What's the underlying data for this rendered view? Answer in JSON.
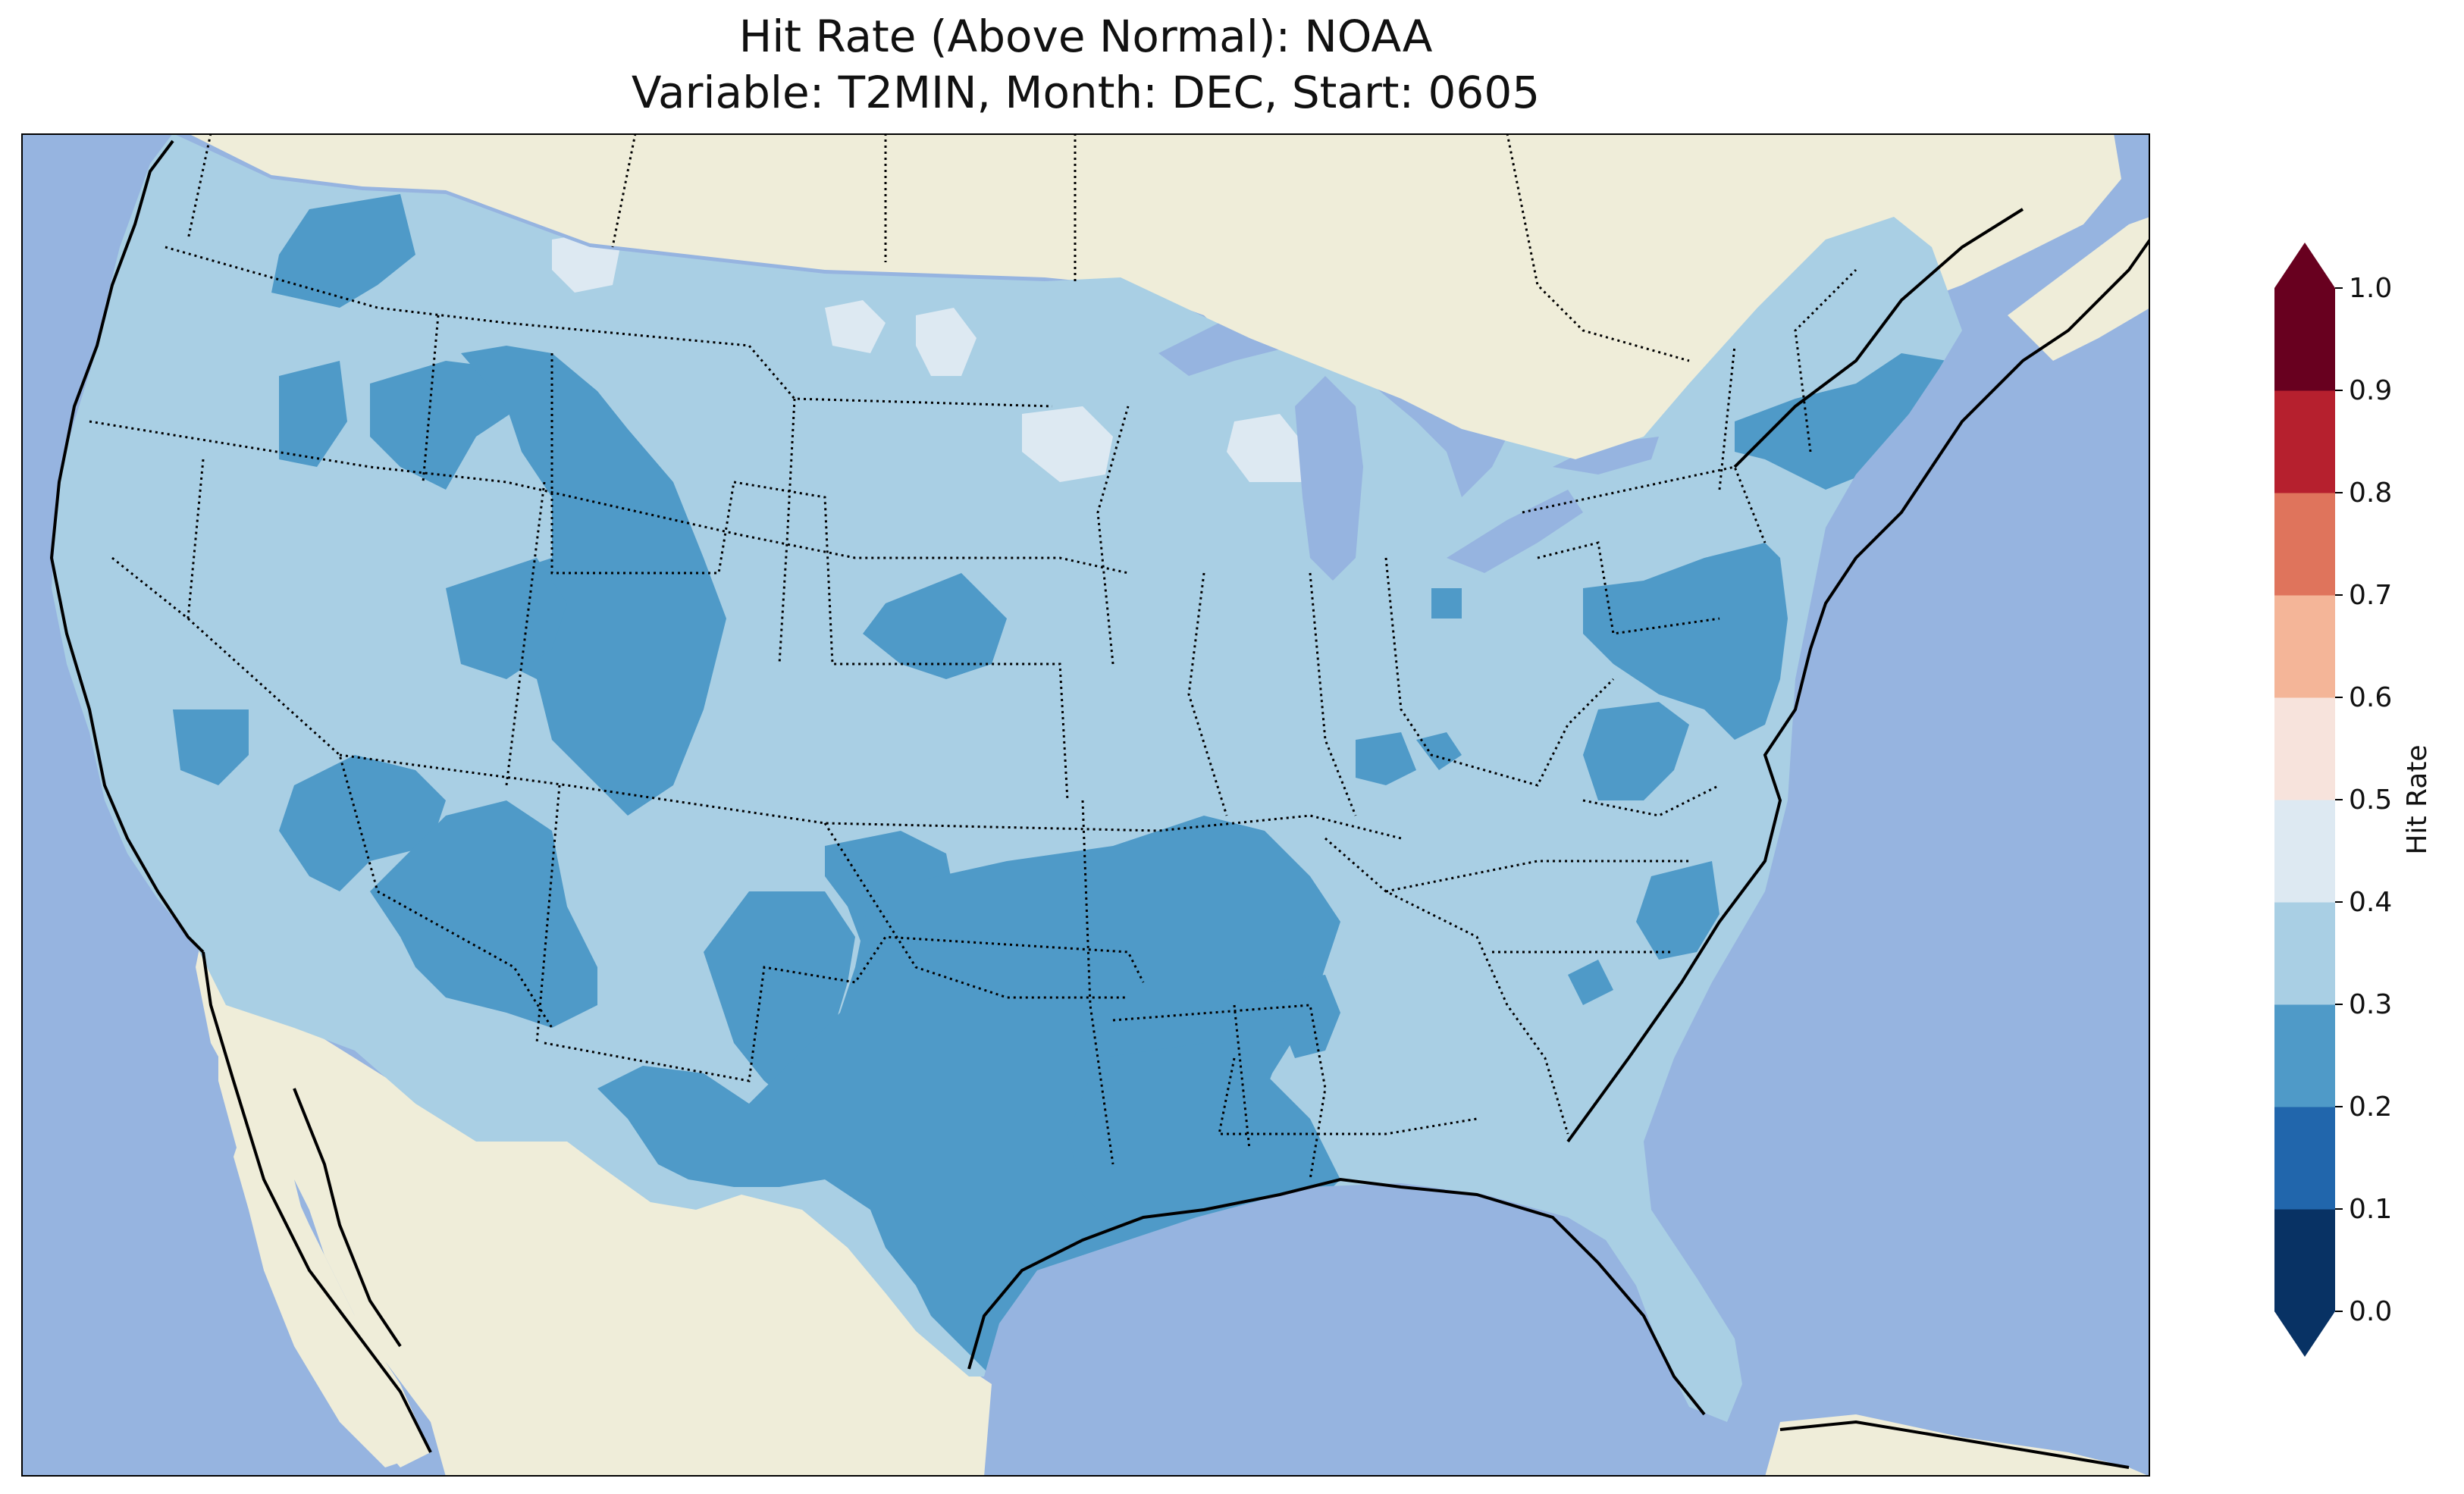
{
  "title": {
    "line1": "Hit Rate (Above Normal): NOAA",
    "line2": "Variable: T2MIN, Month: DEC, Start: 0605"
  },
  "colors": {
    "ocean": "#96b4e0",
    "land": "#efedd9",
    "hit_0_1": "#083264",
    "hit_1_2": "#2166ac",
    "hit_2_3": "#4f9ac8",
    "hit_3_4": "#a9cfe4",
    "hit_4_5": "#dde9f2",
    "hit_5_6": "#f7e3dc",
    "hit_6_7": "#f4b598",
    "hit_7_8": "#df745c",
    "hit_8_9": "#b6202e",
    "hit_9_10": "#68001f",
    "border": "#000000"
  },
  "colorbar": {
    "label": "Hit Rate",
    "ticks": [
      "0.0",
      "0.1",
      "0.2",
      "0.3",
      "0.4",
      "0.5",
      "0.6",
      "0.7",
      "0.8",
      "0.9",
      "1.0"
    ],
    "bins": [
      "#083264",
      "#2166ac",
      "#4f9ac8",
      "#a9cfe4",
      "#dde9f2",
      "#f7e3dc",
      "#f4b598",
      "#df745c",
      "#b6202e",
      "#68001f"
    ],
    "extend": "both"
  },
  "map": {
    "projection": "lambert-conformal",
    "region": "Contiguous United States",
    "field": "Hit Rate",
    "dominant_range": "0.3-0.4",
    "regions": [
      {
        "area": "Texas, Oklahoma, Arkansas, Louisiana",
        "range": "0.2-0.3"
      },
      {
        "area": "Arizona, New Mexico, southern Nevada",
        "range": "0.2-0.3"
      },
      {
        "area": "Wyoming, Idaho, Colorado",
        "range": "0.2-0.3"
      },
      {
        "area": "Northern New England, Pennsylvania, Virginia",
        "range": "0.2-0.3"
      },
      {
        "area": "South Carolina",
        "range": "0.2-0.3"
      },
      {
        "area": "Nebraska",
        "range": "0.2-0.3"
      },
      {
        "area": "North Dakota, Minnesota, Wisconsin, Montana",
        "range": "0.4-0.5"
      }
    ]
  }
}
